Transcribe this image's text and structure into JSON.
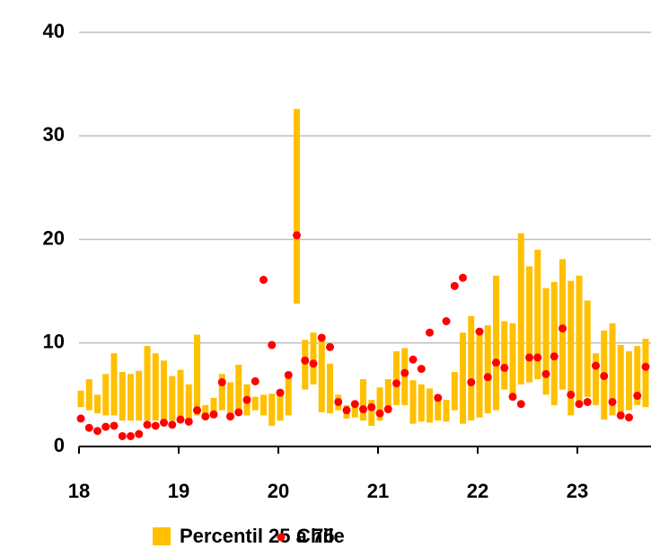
{
  "chart_data": {
    "type": "floating-bar-dot",
    "categories": [
      "18",
      null,
      null,
      null,
      null,
      null,
      null,
      null,
      null,
      null,
      null,
      null,
      "19",
      null,
      null,
      null,
      null,
      null,
      null,
      null,
      null,
      null,
      null,
      null,
      "20",
      null,
      null,
      null,
      null,
      null,
      null,
      null,
      null,
      null,
      null,
      null,
      "21",
      null,
      null,
      null,
      null,
      null,
      null,
      null,
      null,
      null,
      null,
      null,
      "22",
      null,
      null,
      null,
      null,
      null,
      null,
      null,
      null,
      null,
      null,
      null,
      "23",
      null,
      null,
      null,
      null,
      null,
      null,
      null,
      null
    ],
    "series": [
      {
        "name": "Percentil 25 a 75",
        "color": "#FFC000",
        "low": [
          3.8,
          3.5,
          3.2,
          3.0,
          3.0,
          2.5,
          2.5,
          2.5,
          2.5,
          2.5,
          2.5,
          2.5,
          2.5,
          2.5,
          3.0,
          2.8,
          2.8,
          3.5,
          3.0,
          3.5,
          3.0,
          3.5,
          3.0,
          2.0,
          2.5,
          3.0,
          13.8,
          5.5,
          6.0,
          3.3,
          3.2,
          3.5,
          2.7,
          2.8,
          2.5,
          2.0,
          2.5,
          3.5,
          4.0,
          4.0,
          2.2,
          2.4,
          2.3,
          2.5,
          2.4,
          3.5,
          2.2,
          2.5,
          2.8,
          3.2,
          3.5,
          5.5,
          4.5,
          6.0,
          6.2,
          6.5,
          5.0,
          4.0,
          5.5,
          3.0,
          4.0,
          4.8,
          4.0,
          2.6,
          3.0,
          3.2,
          3.5,
          4.0,
          3.8
        ],
        "high": [
          5.4,
          6.5,
          5.0,
          7.0,
          9.0,
          7.2,
          7.0,
          7.3,
          9.7,
          9.0,
          8.3,
          6.8,
          7.4,
          6.0,
          10.8,
          4.0,
          4.7,
          7.0,
          6.2,
          7.9,
          6.0,
          4.8,
          5.0,
          5.1,
          5.5,
          7.0,
          32.6,
          10.3,
          11.0,
          10.8,
          8.0,
          5.0,
          4.0,
          4.0,
          6.5,
          4.5,
          5.7,
          6.5,
          9.2,
          9.5,
          6.4,
          6.0,
          5.6,
          4.8,
          4.5,
          7.2,
          11.0,
          12.6,
          11.3,
          11.7,
          16.5,
          12.1,
          11.9,
          20.6,
          17.4,
          19.0,
          15.3,
          15.9,
          18.1,
          16.0,
          16.5,
          14.1,
          9.0,
          11.2,
          11.9,
          9.8,
          9.2,
          9.7,
          10.4
        ]
      },
      {
        "name": "Chile",
        "color": "#FF0000",
        "values": [
          2.7,
          1.8,
          1.5,
          1.9,
          2.0,
          1.0,
          1.0,
          1.2,
          2.1,
          2.0,
          2.3,
          2.1,
          2.6,
          2.4,
          3.5,
          2.9,
          3.1,
          6.2,
          2.9,
          3.3,
          4.5,
          6.3,
          16.1,
          9.8,
          5.2,
          6.9,
          20.4,
          8.3,
          8.0,
          10.5,
          9.6,
          4.3,
          3.5,
          4.1,
          3.6,
          3.8,
          3.2,
          3.6,
          6.1,
          7.1,
          8.4,
          7.5,
          11.0,
          4.7,
          12.1,
          15.5,
          16.3,
          6.2,
          11.1,
          6.7,
          8.1,
          7.6,
          4.8,
          4.1,
          8.6,
          8.6,
          7.0,
          8.7,
          11.4,
          5.0,
          4.1,
          4.3,
          7.8,
          6.8,
          4.3,
          3.0,
          2.8,
          4.9,
          7.7
        ]
      }
    ],
    "ylim": [
      0,
      40
    ],
    "yticks": [
      0,
      10,
      20,
      30,
      40
    ],
    "grid": true
  }
}
